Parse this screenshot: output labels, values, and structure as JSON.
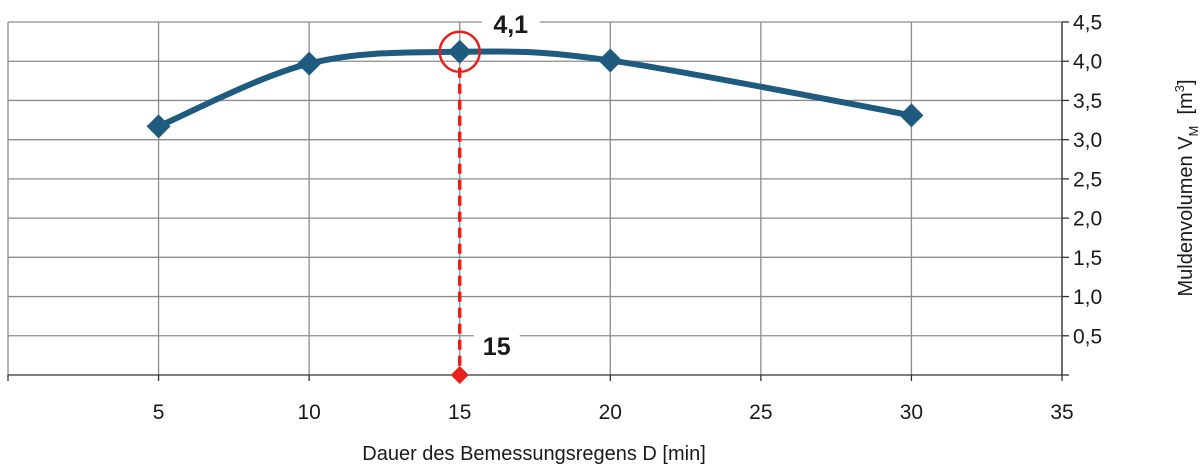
{
  "chart_data": {
    "type": "line",
    "x": [
      5,
      10,
      15,
      20,
      30
    ],
    "series": [
      {
        "values": [
          3.17,
          3.97,
          4.12,
          4.01,
          3.31
        ],
        "color": "#1f5b7e"
      }
    ],
    "xlabel": "Dauer des Bemessungsregens  D [min]",
    "ylabel": {
      "main": "Muldenvolumen V",
      "subscript": "M",
      "unit_open": "  [m",
      "unit_sup": "3",
      "unit_close": "]"
    },
    "xlim": [
      0,
      35
    ],
    "ylim": [
      0,
      4.5
    ],
    "x_ticks": [
      5,
      10,
      15,
      20,
      25,
      30,
      35
    ],
    "x_tick_labels": [
      "5",
      "10",
      "15",
      "20",
      "25",
      "30",
      "35"
    ],
    "y_ticks": [
      0.5,
      1.0,
      1.5,
      2.0,
      2.5,
      3.0,
      3.5,
      4.0,
      4.5
    ],
    "y_tick_labels": [
      "0,5",
      "1,0",
      "1,5",
      "2,0",
      "2,5",
      "3,0",
      "3,5",
      "4,0",
      "4,5"
    ],
    "grid": true,
    "y_axis_side": "right",
    "highlight": {
      "x": 15,
      "y": 4.12,
      "y_label": "4,1",
      "x_label": "15",
      "color": "#e8201c"
    }
  }
}
